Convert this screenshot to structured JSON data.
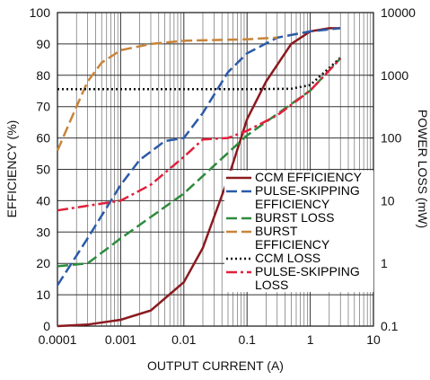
{
  "chart_data": {
    "type": "line",
    "xlabel": "OUTPUT CURRENT (A)",
    "ylabel": "EFFICIENCY (%)",
    "y2label": "POWER LOSS (mW)",
    "xscale": "log",
    "y2scale": "log",
    "grid": true,
    "legend": "lower right",
    "xlim": [
      0.0001,
      10
    ],
    "xticks": [
      0.0001,
      0.001,
      0.01,
      0.1,
      1,
      10
    ],
    "ylim": [
      0,
      100
    ],
    "yticks": [
      0,
      10,
      20,
      30,
      40,
      50,
      60,
      70,
      80,
      90,
      100
    ],
    "y2lim": [
      0.1,
      10000
    ],
    "y2ticks": [
      0.1,
      1,
      10,
      100,
      1000,
      10000
    ],
    "series": [
      {
        "name": "CCM EFFICIENCY",
        "color": "#8b1a1f",
        "linestyle": "solid",
        "x": [
          0.0001,
          0.0003,
          0.001,
          0.003,
          0.01,
          0.02,
          0.05,
          0.1,
          0.2,
          0.5,
          1,
          2,
          3
        ],
        "values": [
          0,
          0.5,
          2,
          5,
          14,
          25,
          47,
          66,
          78,
          90,
          94,
          95,
          95
        ]
      },
      {
        "name": "PULSE-SKIPPING EFFICIENCY",
        "color": "#2b5aa8",
        "linestyle": "dashed",
        "x": [
          0.0001,
          0.0003,
          0.001,
          0.002,
          0.005,
          0.01,
          0.02,
          0.05,
          0.1,
          0.3,
          1,
          3
        ],
        "values": [
          13,
          28,
          45,
          53,
          59,
          60,
          68,
          81,
          87,
          92,
          94,
          95
        ]
      },
      {
        "name": "BURST LOSS",
        "color": "#2e8b3e",
        "linestyle": "dashed",
        "axis": "y2",
        "x": [
          0.0001,
          0.0003,
          0.001,
          0.01,
          0.1,
          1,
          3
        ],
        "values": [
          0.9,
          1,
          2.5,
          13,
          110,
          570,
          1860
        ]
      },
      {
        "name": "BURST EFFICIENCY",
        "color": "#c8843a",
        "linestyle": "dashed",
        "x": [
          0.0001,
          0.0002,
          0.0003,
          0.0005,
          0.001,
          0.003,
          0.01,
          0.1,
          0.3
        ],
        "values": [
          56,
          70,
          78,
          84,
          88,
          90,
          91,
          91.5,
          92
        ]
      },
      {
        "name": "CCM LOSS",
        "color": "#111111",
        "linestyle": "dotted",
        "axis": "y2",
        "x": [
          0.0001,
          0.001,
          0.01,
          0.1,
          0.5,
          1,
          3
        ],
        "values": [
          600,
          600,
          600,
          600,
          610,
          700,
          1900
        ]
      },
      {
        "name": "PULSE-SKIPPING LOSS",
        "color": "#e0203a",
        "linestyle": "dashdot",
        "axis": "y2",
        "x": [
          0.0001,
          0.001,
          0.003,
          0.01,
          0.02,
          0.05,
          0.1,
          0.3,
          1,
          3
        ],
        "values": [
          7,
          10,
          18,
          50,
          95,
          100,
          130,
          230,
          570,
          1850
        ]
      }
    ]
  }
}
